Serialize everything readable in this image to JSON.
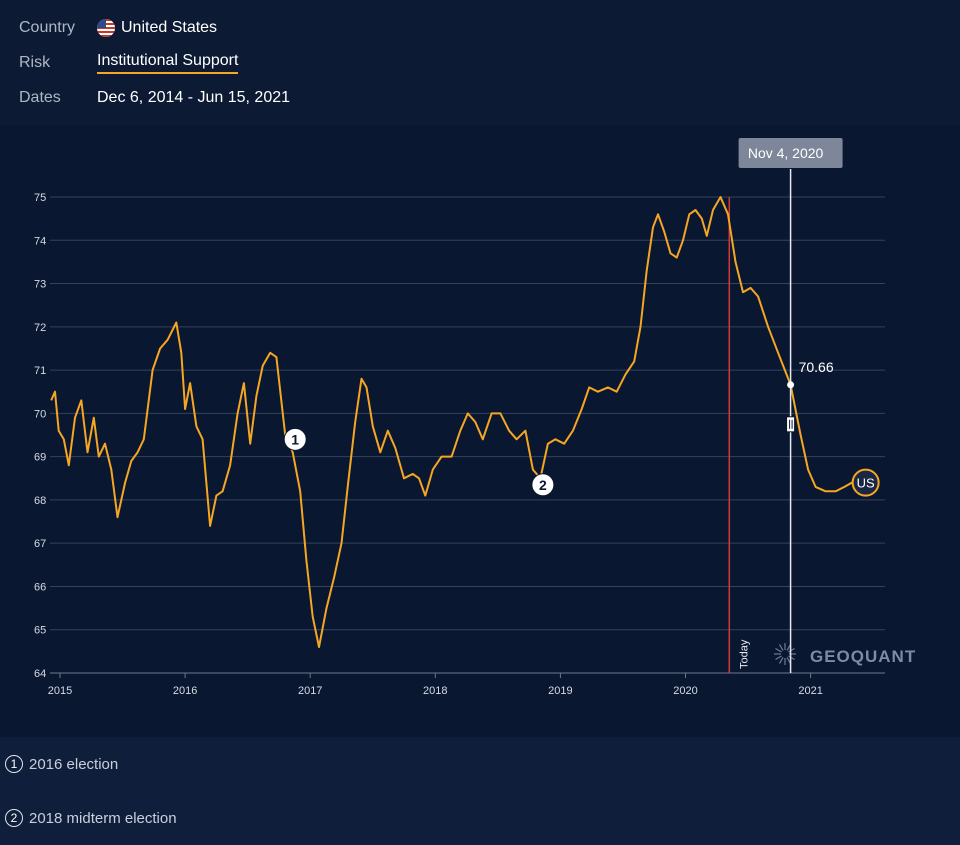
{
  "header": {
    "country_label": "Country",
    "country_value": "United States",
    "risk_label": "Risk",
    "risk_value": "Institutional Support",
    "dates_label": "Dates",
    "dates_value": "Dec 6, 2014 - Jun 15, 2021"
  },
  "colors": {
    "line": "#f5a623",
    "today_line": "#d03a3a",
    "background": "#0a1730"
  },
  "chart_data": {
    "type": "line",
    "ylim": [
      64,
      75
    ],
    "yticks": [
      64,
      65,
      66,
      67,
      68,
      69,
      70,
      71,
      72,
      73,
      74,
      75
    ],
    "xlim": [
      2014.92,
      2021.6
    ],
    "xticks": [
      {
        "value": 2015,
        "label": "2015"
      },
      {
        "value": 2016,
        "label": "2016"
      },
      {
        "value": 2017,
        "label": "2017"
      },
      {
        "value": 2018,
        "label": "2018"
      },
      {
        "value": 2019,
        "label": "2019"
      },
      {
        "value": 2020,
        "label": "2020"
      },
      {
        "value": 2021,
        "label": "2021"
      }
    ],
    "grid": true,
    "series": [
      {
        "values": [
          [
            2014.93,
            70.3
          ],
          [
            2014.96,
            70.5
          ],
          [
            2014.99,
            69.6
          ],
          [
            2015.03,
            69.4
          ],
          [
            2015.07,
            68.8
          ],
          [
            2015.12,
            69.9
          ],
          [
            2015.17,
            70.3
          ],
          [
            2015.22,
            69.1
          ],
          [
            2015.27,
            69.9
          ],
          [
            2015.31,
            69.0
          ],
          [
            2015.36,
            69.3
          ],
          [
            2015.41,
            68.7
          ],
          [
            2015.46,
            67.6
          ],
          [
            2015.52,
            68.4
          ],
          [
            2015.57,
            68.9
          ],
          [
            2015.62,
            69.1
          ],
          [
            2015.67,
            69.4
          ],
          [
            2015.74,
            71.0
          ],
          [
            2015.8,
            71.5
          ],
          [
            2015.86,
            71.7
          ],
          [
            2015.93,
            72.1
          ],
          [
            2015.97,
            71.4
          ],
          [
            2016.0,
            70.1
          ],
          [
            2016.04,
            70.7
          ],
          [
            2016.09,
            69.7
          ],
          [
            2016.14,
            69.4
          ],
          [
            2016.2,
            67.4
          ],
          [
            2016.25,
            68.1
          ],
          [
            2016.3,
            68.2
          ],
          [
            2016.36,
            68.8
          ],
          [
            2016.42,
            70.0
          ],
          [
            2016.47,
            70.7
          ],
          [
            2016.52,
            69.3
          ],
          [
            2016.57,
            70.4
          ],
          [
            2016.62,
            71.1
          ],
          [
            2016.68,
            71.4
          ],
          [
            2016.73,
            71.3
          ],
          [
            2016.8,
            69.5
          ],
          [
            2016.86,
            69.1
          ],
          [
            2016.92,
            68.2
          ],
          [
            2016.97,
            66.6
          ],
          [
            2017.02,
            65.3
          ],
          [
            2017.07,
            64.6
          ],
          [
            2017.13,
            65.5
          ],
          [
            2017.19,
            66.2
          ],
          [
            2017.25,
            67.0
          ],
          [
            2017.3,
            68.3
          ],
          [
            2017.36,
            69.8
          ],
          [
            2017.41,
            70.8
          ],
          [
            2017.45,
            70.6
          ],
          [
            2017.5,
            69.7
          ],
          [
            2017.56,
            69.1
          ],
          [
            2017.62,
            69.6
          ],
          [
            2017.68,
            69.2
          ],
          [
            2017.75,
            68.5
          ],
          [
            2017.82,
            68.6
          ],
          [
            2017.87,
            68.5
          ],
          [
            2017.92,
            68.1
          ],
          [
            2017.98,
            68.7
          ],
          [
            2018.05,
            69.0
          ],
          [
            2018.13,
            69.0
          ],
          [
            2018.2,
            69.6
          ],
          [
            2018.26,
            70.0
          ],
          [
            2018.32,
            69.8
          ],
          [
            2018.38,
            69.4
          ],
          [
            2018.45,
            70.0
          ],
          [
            2018.52,
            70.0
          ],
          [
            2018.59,
            69.6
          ],
          [
            2018.65,
            69.4
          ],
          [
            2018.72,
            69.6
          ],
          [
            2018.78,
            68.7
          ],
          [
            2018.84,
            68.5
          ],
          [
            2018.9,
            69.3
          ],
          [
            2018.96,
            69.4
          ],
          [
            2019.03,
            69.3
          ],
          [
            2019.1,
            69.6
          ],
          [
            2019.17,
            70.1
          ],
          [
            2019.23,
            70.6
          ],
          [
            2019.3,
            70.5
          ],
          [
            2019.38,
            70.6
          ],
          [
            2019.45,
            70.5
          ],
          [
            2019.52,
            70.9
          ],
          [
            2019.59,
            71.2
          ],
          [
            2019.64,
            72.0
          ],
          [
            2019.69,
            73.3
          ],
          [
            2019.74,
            74.3
          ],
          [
            2019.78,
            74.6
          ],
          [
            2019.83,
            74.2
          ],
          [
            2019.88,
            73.7
          ],
          [
            2019.93,
            73.6
          ],
          [
            2019.98,
            74.0
          ],
          [
            2020.03,
            74.6
          ],
          [
            2020.08,
            74.7
          ],
          [
            2020.13,
            74.5
          ],
          [
            2020.17,
            74.1
          ],
          [
            2020.22,
            74.7
          ],
          [
            2020.28,
            75.0
          ],
          [
            2020.34,
            74.6
          ],
          [
            2020.4,
            73.5
          ],
          [
            2020.46,
            72.8
          ],
          [
            2020.52,
            72.9
          ],
          [
            2020.58,
            72.7
          ],
          [
            2020.66,
            72.0
          ],
          [
            2020.74,
            71.4
          ],
          [
            2020.84,
            70.66
          ],
          [
            2020.92,
            69.5
          ],
          [
            2020.98,
            68.7
          ],
          [
            2021.04,
            68.3
          ],
          [
            2021.12,
            68.2
          ],
          [
            2021.2,
            68.2
          ],
          [
            2021.27,
            68.3
          ],
          [
            2021.33,
            68.4
          ],
          [
            2021.36,
            68.4
          ],
          [
            2021.38,
            68.6
          ],
          [
            2021.44,
            68.4
          ]
        ]
      }
    ],
    "annotations": [
      {
        "label": "1",
        "x": 2016.88,
        "y": 69.4
      },
      {
        "label": "2",
        "x": 2018.86,
        "y": 68.35
      }
    ],
    "today_line": {
      "x": 2020.35,
      "label": "Today"
    },
    "cursor": {
      "x": 2020.84,
      "y": 70.66,
      "date_label": "Nov 4, 2020",
      "value_label": "70.66"
    },
    "end_marker": {
      "x": 2021.44,
      "y": 68.4,
      "label": "US"
    },
    "watermark": "GEOQUANT"
  },
  "legend": [
    {
      "number": "1",
      "text": "2016 election"
    },
    {
      "number": "2",
      "text": "2018 midterm election"
    }
  ]
}
